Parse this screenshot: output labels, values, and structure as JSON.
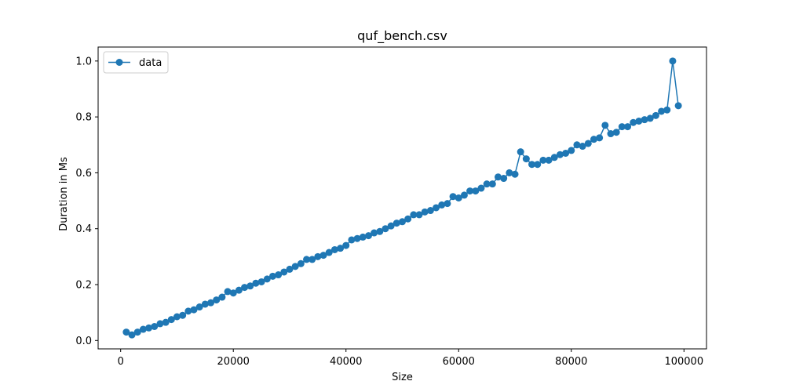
{
  "chart_data": {
    "type": "line",
    "title": "quf_bench.csv",
    "xlabel": "Size",
    "ylabel": "Duration in Ms",
    "xlim": [
      -4000,
      104000
    ],
    "ylim": [
      -0.03,
      1.05
    ],
    "xticks": [
      0,
      20000,
      40000,
      60000,
      80000,
      100000
    ],
    "yticks": [
      0.0,
      0.2,
      0.4,
      0.6,
      0.8,
      1.0
    ],
    "xtick_labels": [
      "0",
      "20000",
      "40000",
      "60000",
      "80000",
      "100000"
    ],
    "ytick_labels": [
      "0.0",
      "0.2",
      "0.4",
      "0.6",
      "0.8",
      "1.0"
    ],
    "grid": false,
    "legend_position": "upper-left",
    "series": [
      {
        "name": "data",
        "color": "#1f77b4",
        "marker": "circle",
        "x": [
          1000,
          2000,
          3000,
          4000,
          5000,
          6000,
          7000,
          8000,
          9000,
          10000,
          11000,
          12000,
          13000,
          14000,
          15000,
          16000,
          17000,
          18000,
          19000,
          20000,
          21000,
          22000,
          23000,
          24000,
          25000,
          26000,
          27000,
          28000,
          29000,
          30000,
          31000,
          32000,
          33000,
          34000,
          35000,
          36000,
          37000,
          38000,
          39000,
          40000,
          41000,
          42000,
          43000,
          44000,
          45000,
          46000,
          47000,
          48000,
          49000,
          50000,
          51000,
          52000,
          53000,
          54000,
          55000,
          56000,
          57000,
          58000,
          59000,
          60000,
          61000,
          62000,
          63000,
          64000,
          65000,
          66000,
          67000,
          68000,
          69000,
          70000,
          71000,
          72000,
          73000,
          74000,
          75000,
          76000,
          77000,
          78000,
          79000,
          80000,
          81000,
          82000,
          83000,
          84000,
          85000,
          86000,
          87000,
          88000,
          89000,
          90000,
          91000,
          92000,
          93000,
          94000,
          95000,
          96000,
          97000,
          98000,
          99000
        ],
        "y": [
          0.03,
          0.02,
          0.03,
          0.04,
          0.045,
          0.05,
          0.06,
          0.065,
          0.075,
          0.085,
          0.09,
          0.105,
          0.11,
          0.12,
          0.13,
          0.135,
          0.145,
          0.155,
          0.175,
          0.17,
          0.18,
          0.19,
          0.195,
          0.205,
          0.21,
          0.22,
          0.23,
          0.235,
          0.245,
          0.255,
          0.265,
          0.275,
          0.29,
          0.29,
          0.3,
          0.305,
          0.315,
          0.325,
          0.33,
          0.34,
          0.36,
          0.365,
          0.37,
          0.375,
          0.385,
          0.39,
          0.4,
          0.41,
          0.42,
          0.425,
          0.435,
          0.45,
          0.45,
          0.46,
          0.465,
          0.475,
          0.485,
          0.49,
          0.515,
          0.51,
          0.52,
          0.535,
          0.535,
          0.545,
          0.56,
          0.56,
          0.585,
          0.58,
          0.6,
          0.595,
          0.675,
          0.65,
          0.63,
          0.63,
          0.645,
          0.645,
          0.655,
          0.665,
          0.67,
          0.68,
          0.7,
          0.695,
          0.705,
          0.72,
          0.725,
          0.77,
          0.74,
          0.745,
          0.765,
          0.765,
          0.78,
          0.785,
          0.79,
          0.795,
          0.805,
          0.82,
          0.825,
          1.0,
          0.84
        ]
      }
    ]
  }
}
